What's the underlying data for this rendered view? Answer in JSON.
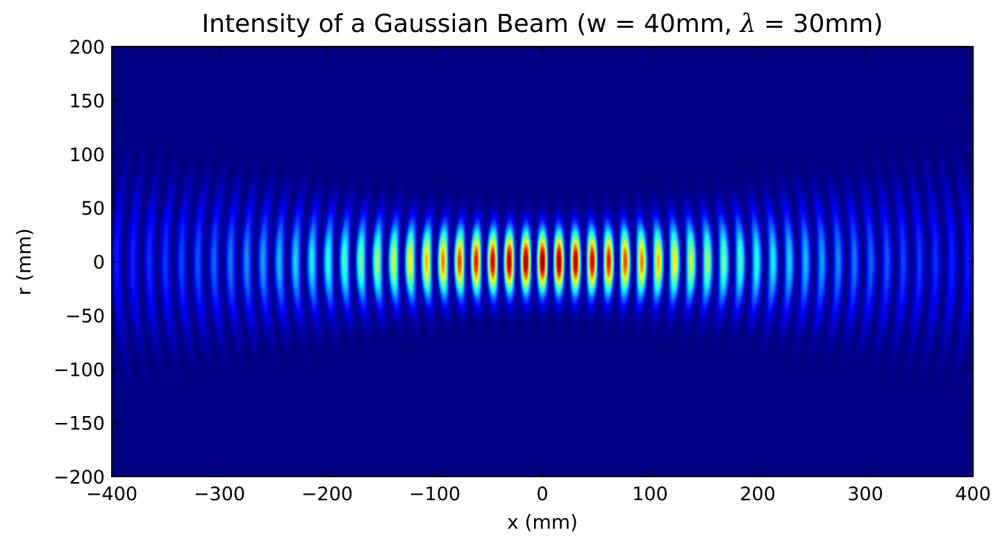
{
  "chart_data": {
    "type": "heatmap",
    "title_prefix": "Intensity of a Gaussian Beam (w = 40mm, ",
    "title_symbol": "λ",
    "title_suffix": " = 30mm)",
    "xlabel": "x (mm)",
    "ylabel": "r (mm)",
    "xlim": [
      -400,
      400
    ],
    "ylim": [
      -200,
      200
    ],
    "x_ticks": [
      -400,
      -300,
      -200,
      -100,
      0,
      100,
      200,
      300,
      400
    ],
    "y_ticks": [
      -200,
      -150,
      -100,
      -50,
      0,
      50,
      100,
      150,
      200
    ],
    "beam_waist_mm": 40,
    "wavelength_mm": 30,
    "colormap": "jet",
    "grid": false,
    "colors": {
      "jet_low": "#00007f",
      "jet_high": "#7f0000",
      "frame": "#000000"
    }
  }
}
